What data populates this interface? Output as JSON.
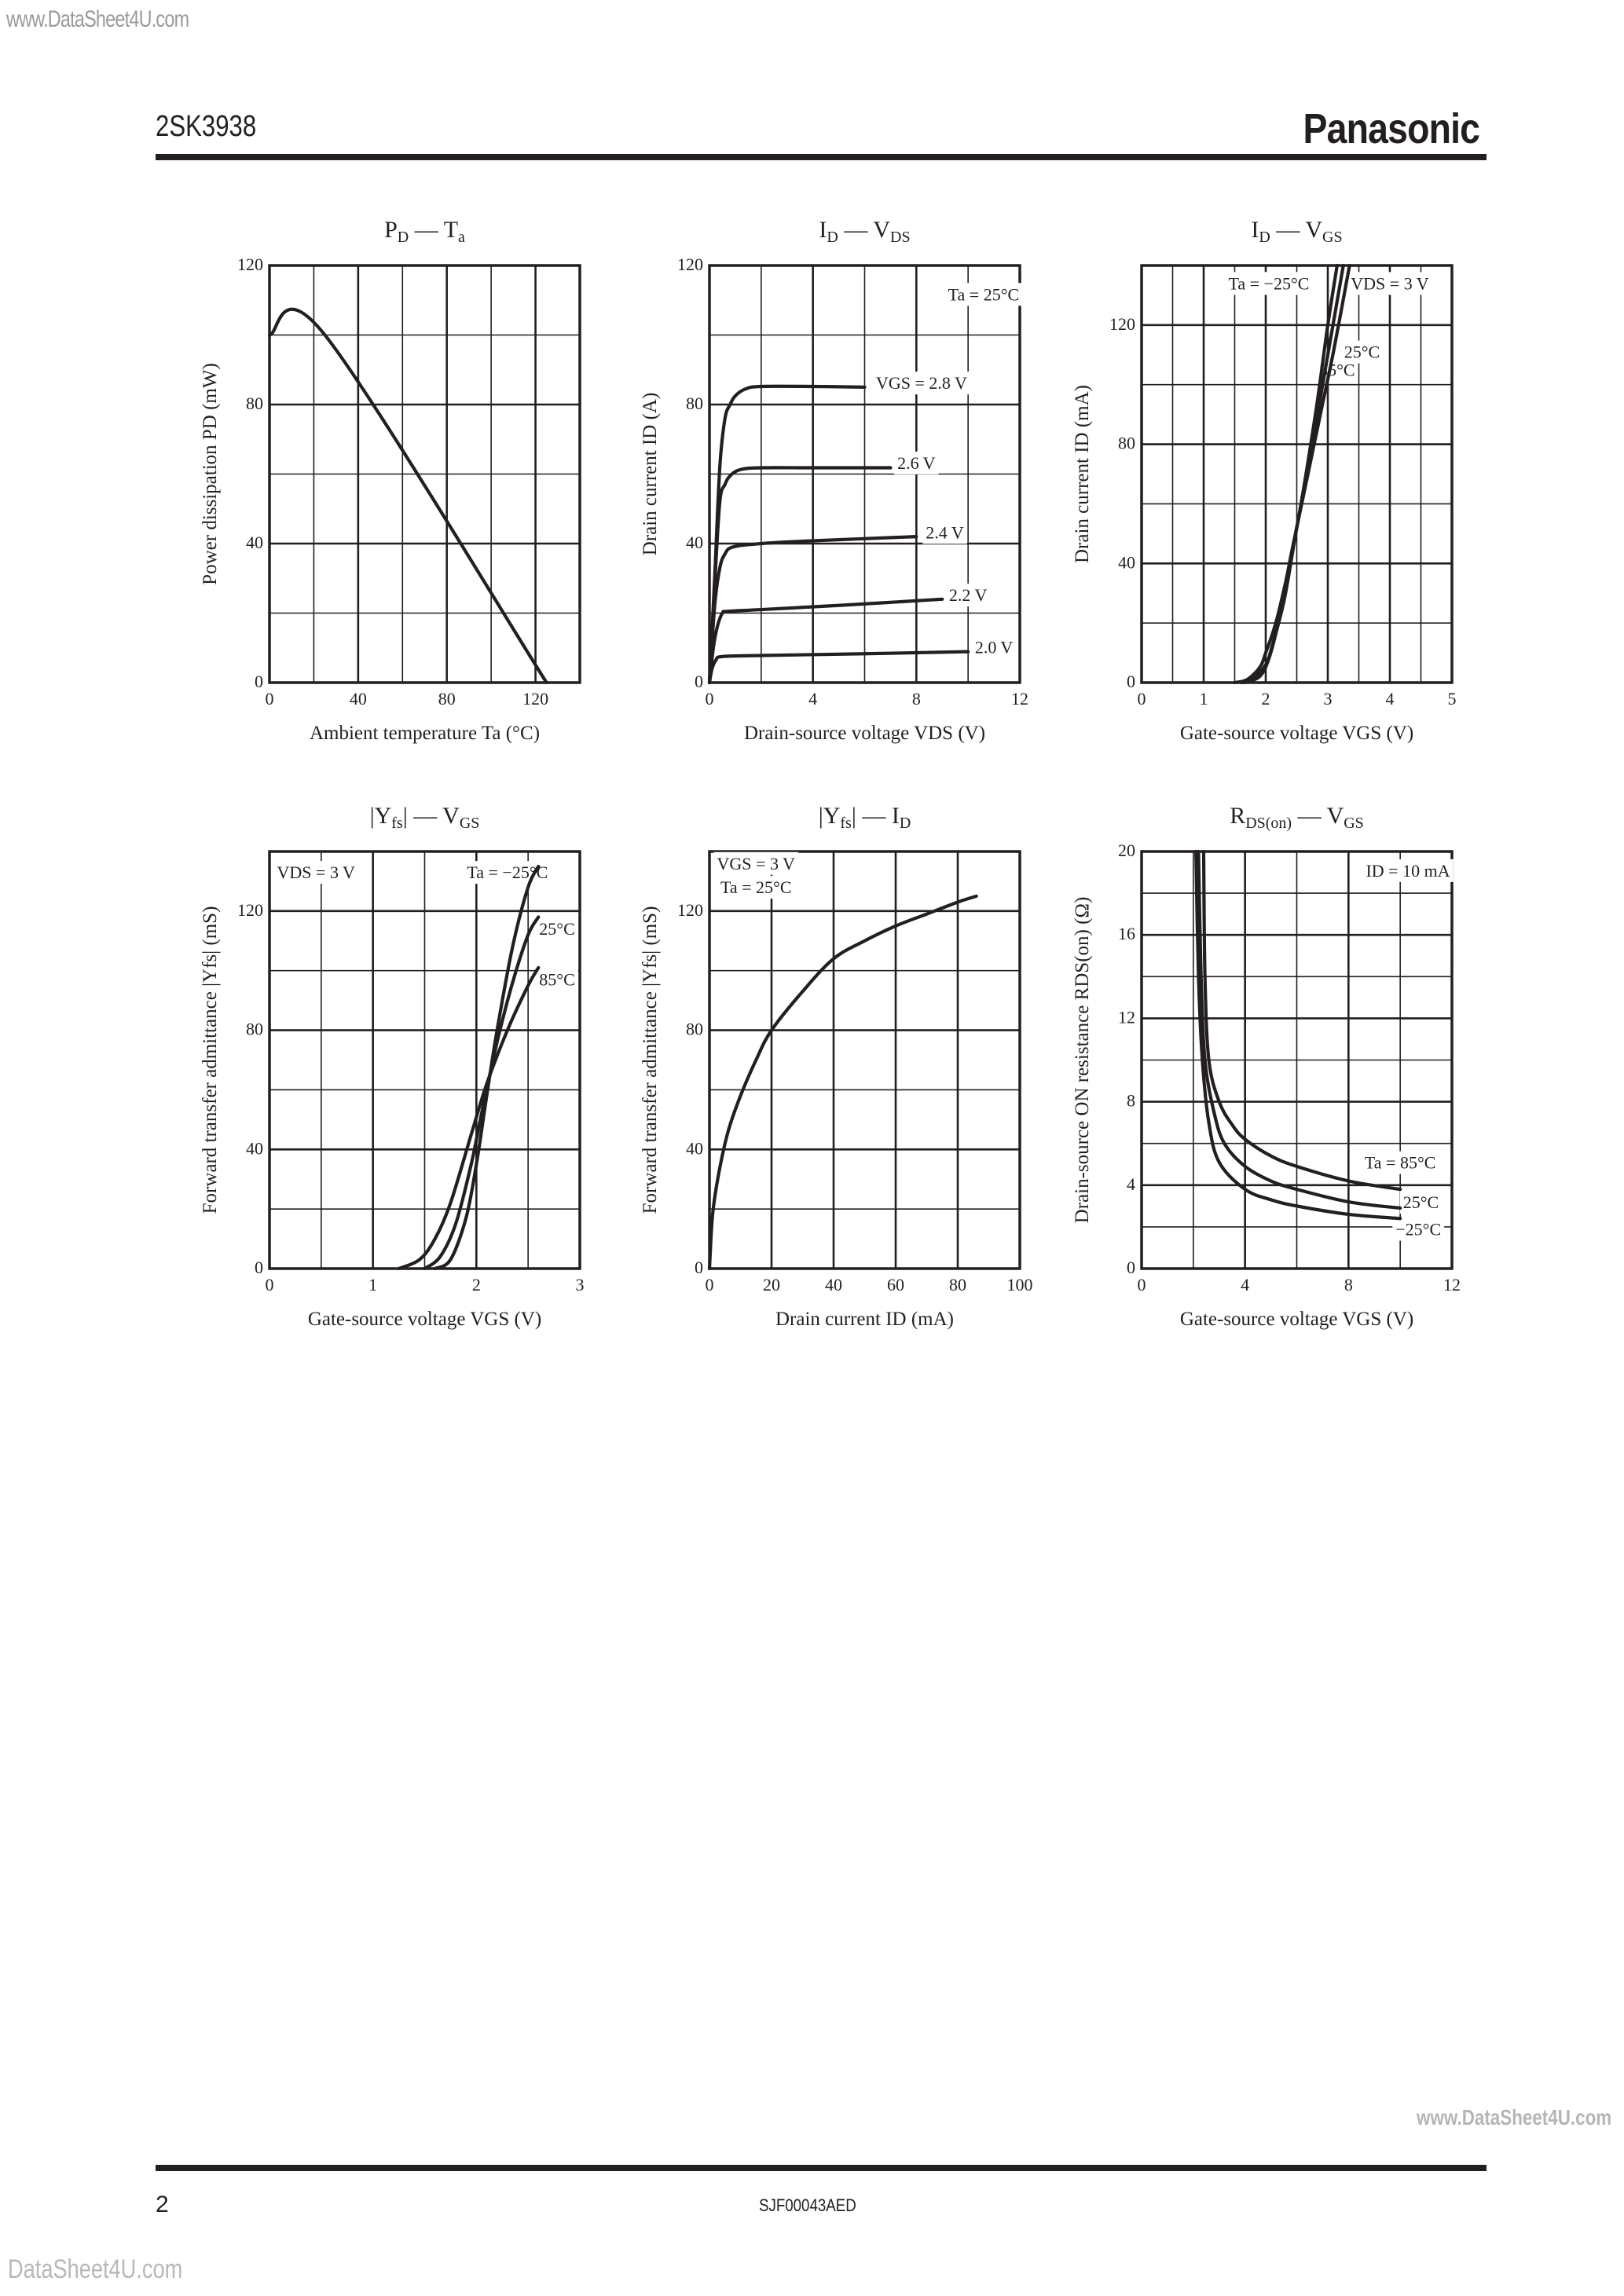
{
  "page": {
    "watermark_top": "www.DataSheet4U.com",
    "part_number": "2SK3938",
    "brand": "Panasonic",
    "watermark_mid": "www.DataSheet4U.com",
    "page_number": "2",
    "doc_code": "SJF00043AED",
    "watermark_bottom": "DataSheet4U.com"
  },
  "chart_data": [
    {
      "id": "pd_ta",
      "type": "line",
      "title": "PD — Ta",
      "title_main": "P",
      "title_sub": "D",
      "title_sep": " — ",
      "title_main2": "T",
      "title_sub2": "a",
      "xlabel": "Ambient temperature  Ta  (°C)",
      "ylabel": "Power dissipation  PD  (mW)",
      "xlim": [
        0,
        140
      ],
      "ylim": [
        0,
        120
      ],
      "xticks": [
        0,
        40,
        80,
        120
      ],
      "yticks": [
        0,
        40,
        80,
        120
      ],
      "xgrid": [
        20,
        40,
        60,
        80,
        100,
        120
      ],
      "ygrid": [
        20,
        40,
        60,
        80,
        100
      ],
      "grid": true,
      "series": [
        {
          "name": "PD",
          "x": [
            0,
            25,
            125
          ],
          "y": [
            100,
            100,
            0
          ]
        }
      ],
      "annotations": []
    },
    {
      "id": "id_vds",
      "type": "line",
      "title": "ID — VDS",
      "title_main": "I",
      "title_sub": "D",
      "title_sep": " — ",
      "title_main2": "V",
      "title_sub2": "DS",
      "xlabel": "Drain-source voltage  VDS  (V)",
      "ylabel": "Drain current  ID  (A)",
      "xlim": [
        0,
        12
      ],
      "ylim": [
        0,
        120
      ],
      "xticks": [
        0,
        4,
        8,
        12
      ],
      "yticks": [
        0,
        40,
        80,
        120
      ],
      "xgrid": [
        2,
        4,
        6,
        8,
        10
      ],
      "ygrid": [
        20,
        40,
        60,
        80,
        100
      ],
      "grid": true,
      "series": [
        {
          "name": "VGS = 2.8 V",
          "x": [
            0,
            0.2,
            0.4,
            0.6,
            0.8,
            1.0,
            1.4,
            2.0,
            4,
            6
          ],
          "y": [
            0,
            30,
            62,
            76,
            80,
            82.5,
            84.5,
            85.2,
            85.2,
            85
          ]
        },
        {
          "name": "2.6 V",
          "x": [
            0,
            0.2,
            0.4,
            0.6,
            0.8,
            1.2,
            2.0,
            4,
            7
          ],
          "y": [
            0,
            28,
            52,
            57,
            59.5,
            61.3,
            61.8,
            61.8,
            61.8
          ]
        },
        {
          "name": "2.4 V",
          "x": [
            0,
            0.2,
            0.4,
            0.6,
            0.9,
            2,
            4,
            8
          ],
          "y": [
            0,
            22,
            33,
            37,
            39,
            40,
            40.8,
            42
          ]
        },
        {
          "name": "2.2 V",
          "x": [
            0,
            0.15,
            0.3,
            0.5,
            0.7,
            2,
            5,
            9
          ],
          "y": [
            0,
            10,
            16,
            20,
            20.5,
            21,
            22.2,
            24
          ]
        },
        {
          "name": "2.0 V",
          "x": [
            0,
            0.1,
            0.25,
            0.5,
            2,
            6,
            10
          ],
          "y": [
            0,
            4,
            6.5,
            7.5,
            7.8,
            8.3,
            8.9
          ]
        }
      ],
      "annotations": [
        {
          "text": "Ta = 25°C",
          "x": 10.6,
          "y": 110
        },
        {
          "text": "VGS = 2.8 V",
          "x": 8.2,
          "y": 84.5
        },
        {
          "text": "2.6 V",
          "x": 8.0,
          "y": 61.5
        },
        {
          "text": "2.4 V",
          "x": 9.1,
          "y": 41.5
        },
        {
          "text": "2.2 V",
          "x": 10.0,
          "y": 23.5
        },
        {
          "text": "2.0 V",
          "x": 11.0,
          "y": 8.5
        }
      ]
    },
    {
      "id": "id_vgs",
      "type": "line",
      "title": "ID — VGS",
      "title_main": "I",
      "title_sub": "D",
      "title_sep": " — ",
      "title_main2": "V",
      "title_sub2": "GS",
      "xlabel": "Gate-source voltage  VGS  (V)",
      "ylabel": "Drain current  ID  (mA)",
      "xlim": [
        0,
        5
      ],
      "ylim": [
        0,
        140
      ],
      "xticks": [
        0,
        1,
        2,
        3,
        4,
        5
      ],
      "yticks": [
        0,
        40,
        80,
        120
      ],
      "xgrid": [
        0.5,
        1,
        1.5,
        2,
        2.5,
        3,
        3.5,
        4,
        4.5
      ],
      "ygrid": [
        20,
        40,
        60,
        80,
        100,
        120
      ],
      "grid": true,
      "series": [
        {
          "name": "Ta = -25°C",
          "x": [
            1.5,
            1.7,
            1.9,
            2.0,
            2.2,
            2.5,
            2.8,
            3.0,
            3.15
          ],
          "y": [
            0,
            1,
            5,
            10,
            23,
            52,
            90,
            120,
            140
          ]
        },
        {
          "name": "25°C",
          "x": [
            1.6,
            1.8,
            2.0,
            2.1,
            2.3,
            2.5,
            2.8,
            3.0,
            3.25
          ],
          "y": [
            0,
            1.5,
            6,
            12,
            28,
            52,
            86,
            110,
            140
          ]
        },
        {
          "name": "85°C",
          "x": [
            1.65,
            1.9,
            2.05,
            2.2,
            2.4,
            2.6,
            2.9,
            3.1,
            3.35
          ],
          "y": [
            0,
            2,
            8,
            20,
            42,
            62,
            92,
            112,
            140
          ]
        }
      ],
      "annotations": [
        {
          "text": "Ta = −25°C",
          "x": 2.05,
          "y": 132
        },
        {
          "text": "VDS = 3 V",
          "x": 4.0,
          "y": 132
        },
        {
          "text": "25°C",
          "x": 3.55,
          "y": 109
        },
        {
          "text": "85°C",
          "x": 3.15,
          "y": 103
        }
      ]
    },
    {
      "id": "yfs_vgs",
      "type": "line",
      "title": "|Yfs| — VGS",
      "title_main": "|Y",
      "title_sub": "fs",
      "title_after": "|",
      "title_sep": " — ",
      "title_main2": "V",
      "title_sub2": "GS",
      "xlabel": "Gate-source voltage  VGS  (V)",
      "ylabel": "Forward transfer admittance  |Yfs|  (mS)",
      "xlim": [
        0,
        3
      ],
      "ylim": [
        0,
        140
      ],
      "xticks": [
        0,
        1,
        2,
        3
      ],
      "yticks": [
        0,
        40,
        80,
        120
      ],
      "xgrid": [
        0.5,
        1,
        1.5,
        2,
        2.5
      ],
      "ygrid": [
        20,
        40,
        60,
        80,
        100,
        120
      ],
      "grid": true,
      "series": [
        {
          "name": "Ta = -25°C",
          "x": [
            1.6,
            1.75,
            1.9,
            2.0,
            2.1,
            2.2,
            2.35,
            2.5,
            2.6
          ],
          "y": [
            0,
            3,
            17,
            35,
            58,
            80,
            108,
            128,
            135
          ]
        },
        {
          "name": "25°C",
          "x": [
            1.5,
            1.65,
            1.8,
            1.95,
            2.05,
            2.2,
            2.35,
            2.5,
            2.6
          ],
          "y": [
            0,
            4,
            15,
            35,
            52,
            76,
            96,
            112,
            118
          ]
        },
        {
          "name": "85°C",
          "x": [
            1.25,
            1.45,
            1.6,
            1.75,
            1.95,
            2.1,
            2.3,
            2.5,
            2.6
          ],
          "y": [
            0,
            3,
            10,
            22,
            45,
            62,
            80,
            95,
            101
          ]
        }
      ],
      "annotations": [
        {
          "text": "VDS = 3 V",
          "x": 0.45,
          "y": 131
        },
        {
          "text": "Ta = −25°C",
          "x": 2.3,
          "y": 131
        },
        {
          "text": "25°C",
          "x": 2.78,
          "y": 112
        },
        {
          "text": "85°C",
          "x": 2.78,
          "y": 95
        }
      ]
    },
    {
      "id": "yfs_id",
      "type": "line",
      "title": "|Yfs| — ID",
      "title_main": "|Y",
      "title_sub": "fs",
      "title_after": "|",
      "title_sep": " — ",
      "title_main2": "I",
      "title_sub2": "D",
      "xlabel": "Drain current  ID  (mA)",
      "ylabel": "Forward transfer admittance  |Yfs|  (mS)",
      "xlim": [
        0,
        100
      ],
      "ylim": [
        0,
        140
      ],
      "xticks": [
        0,
        20,
        40,
        60,
        80,
        100
      ],
      "yticks": [
        0,
        40,
        80,
        120
      ],
      "xgrid": [
        20,
        40,
        60,
        80
      ],
      "ygrid": [
        20,
        40,
        60,
        80,
        100,
        120
      ],
      "grid": true,
      "series": [
        {
          "name": "VGS = 3 V, Ta = 25°C",
          "x": [
            0,
            1,
            3,
            6,
            10,
            15,
            20,
            30,
            40,
            50,
            60,
            70,
            80,
            86
          ],
          "y": [
            0,
            18,
            32,
            46,
            58,
            70,
            80,
            93,
            104,
            110,
            115,
            119,
            123,
            125
          ]
        }
      ],
      "annotations": [
        {
          "text": "VGS = 3 V",
          "x": 15,
          "y": 134
        },
        {
          "text": "Ta = 25°C",
          "x": 15,
          "y": 126
        }
      ]
    },
    {
      "id": "rds_vgs",
      "type": "line",
      "title": "RDS(on) — VGS",
      "title_main": "R",
      "title_sub": "DS(on)",
      "title_sep": " — ",
      "title_main2": "V",
      "title_sub2": "GS",
      "xlabel": "Gate-source voltage  VGS  (V)",
      "ylabel": "Drain-source ON resistance  RDS(on)  (Ω)",
      "xlim": [
        0,
        12
      ],
      "ylim": [
        0,
        20
      ],
      "xticks": [
        0,
        4,
        8,
        12
      ],
      "yticks": [
        0,
        4,
        8,
        12,
        16,
        20
      ],
      "xgrid": [
        2,
        4,
        6,
        8,
        10
      ],
      "ygrid": [
        2,
        4,
        6,
        8,
        10,
        12,
        14,
        16,
        18
      ],
      "grid": true,
      "series": [
        {
          "name": "Ta = 85°C",
          "x": [
            2.4,
            2.45,
            2.6,
            3.0,
            3.5,
            4.0,
            5,
            6,
            8,
            10
          ],
          "y": [
            20,
            14,
            10,
            8,
            6.9,
            6.2,
            5.4,
            4.9,
            4.2,
            3.8
          ]
        },
        {
          "name": "25°C",
          "x": [
            2.2,
            2.3,
            2.45,
            2.8,
            3.2,
            4.0,
            5,
            6,
            8,
            10
          ],
          "y": [
            20,
            14,
            10,
            7.5,
            6.0,
            4.9,
            4.2,
            3.8,
            3.2,
            2.9
          ]
        },
        {
          "name": "-25°C",
          "x": [
            2.1,
            2.2,
            2.35,
            2.6,
            3.0,
            4.0,
            5,
            6,
            8,
            10
          ],
          "y": [
            20,
            14,
            10,
            7.0,
            5.1,
            3.8,
            3.3,
            3.0,
            2.6,
            2.4
          ]
        }
      ],
      "annotations": [
        {
          "text": "ID = 10 mA",
          "x": 10.3,
          "y": 18.8
        },
        {
          "text": "Ta = 85°C",
          "x": 10.0,
          "y": 4.8
        },
        {
          "text": "25°C",
          "x": 10.8,
          "y": 2.9
        },
        {
          "text": "−25°C",
          "x": 10.7,
          "y": 1.6
        }
      ]
    }
  ]
}
